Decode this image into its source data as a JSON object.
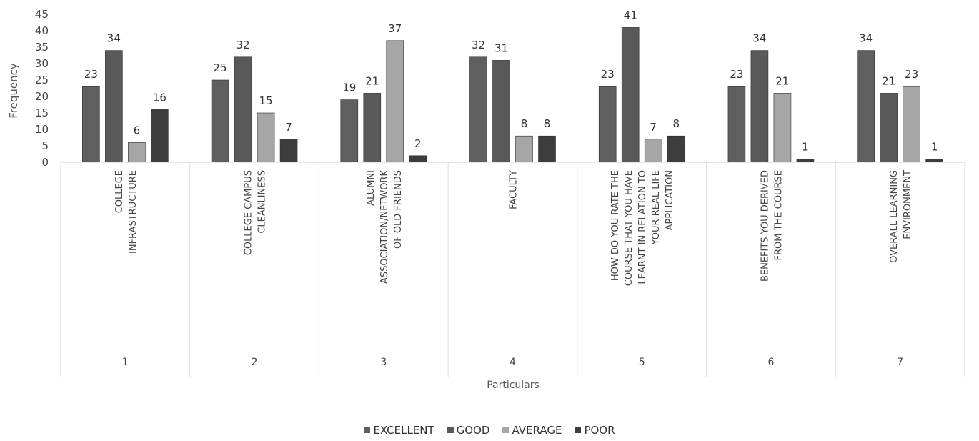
{
  "chart_data": {
    "type": "bar",
    "title": "",
    "xlabel": "Particulars",
    "ylabel": "Frequency",
    "ylim": [
      0,
      45
    ],
    "yticks": [
      0,
      5,
      10,
      15,
      20,
      25,
      30,
      35,
      40,
      45
    ],
    "grid": false,
    "legend_position": "bottom",
    "categories": [
      "1",
      "2",
      "3",
      "4",
      "5",
      "6",
      "7"
    ],
    "category_labels": [
      [
        "COLLEGE",
        "INFRASTRUCTURE"
      ],
      [
        "COLLEGE CAMPUS",
        "CLEANLINESS"
      ],
      [
        "ALUMNI",
        "ASSOCIATION/NETWORK",
        "OF OLD FRIENDS"
      ],
      [
        "FACULTY"
      ],
      [
        "HOW DO YOU RATE THE",
        "COURSE THAT YOU HAVE",
        "LEARNT IN RELATION TO",
        "YOUR REAL LIFE",
        "APPLICATION"
      ],
      [
        "BENEFITS YOU DERIVED",
        "FROM THE COURSE"
      ],
      [
        "OVERALL LEARNING",
        "ENVIRONMENT"
      ]
    ],
    "series": [
      {
        "name": "EXCELLENT",
        "color": "#5f5f5f",
        "values": [
          23,
          25,
          19,
          32,
          23,
          23,
          34
        ]
      },
      {
        "name": "GOOD",
        "color": "#595959",
        "values": [
          34,
          32,
          21,
          31,
          41,
          34,
          21
        ]
      },
      {
        "name": "AVERAGE",
        "color": "#a6a6a6",
        "values": [
          6,
          15,
          37,
          8,
          7,
          21,
          23
        ]
      },
      {
        "name": "POOR",
        "color": "#3d3d3d",
        "values": [
          16,
          7,
          2,
          8,
          8,
          1,
          1
        ]
      }
    ]
  }
}
